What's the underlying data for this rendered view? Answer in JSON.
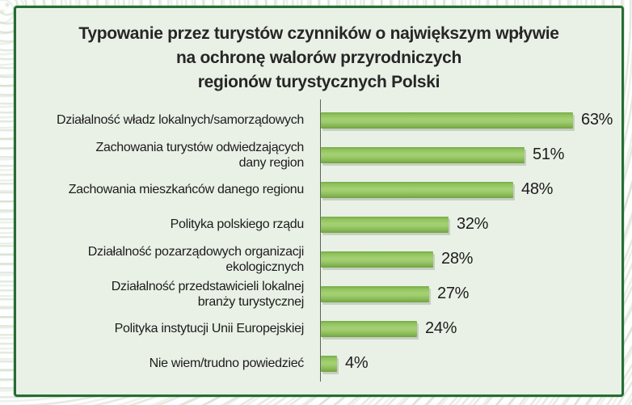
{
  "title_lines": [
    "Typowanie przez turystów czynników o największym wpływie",
    "na ochronę walorów przyrodniczych",
    "regionów turystycznych Polski"
  ],
  "colors": {
    "panel_background": "#e9f1e6",
    "panel_border": "#266d33",
    "bar_green": "#8fc35c",
    "axis": "#5c685a",
    "text": "#1c1c1c"
  },
  "chart_data": {
    "type": "bar",
    "orientation": "horizontal",
    "title": "Typowanie przez turystów czynników o największym wpływie na ochronę walorów przyrodniczych regionów turystycznych Polski",
    "unit": "%",
    "xlim": [
      0,
      70
    ],
    "grid": false,
    "legend": false,
    "categories": [
      "Działalność władz lokalnych/samorządowych",
      "Zachowania turystów odwiedzających dany region",
      "Zachowania mieszkańców danego regionu",
      "Polityka polskiego rządu",
      "Działalność pozarządowych organizacji ekologicznych",
      "Działalność przedstawicieli lokalnej branży turystycznej",
      "Polityka instytucji Unii Europejskiej",
      "Nie wiem/trudno powiedzieć"
    ],
    "category_lines": [
      [
        "Działalność władz lokalnych/samorządowych"
      ],
      [
        "Zachowania turystów odwiedzających",
        "dany region"
      ],
      [
        "Zachowania mieszkańców danego regionu"
      ],
      [
        "Polityka polskiego rządu"
      ],
      [
        "Działalność pozarządowych organizacji",
        "ekologicznych"
      ],
      [
        "Działalność przedstawicieli lokalnej",
        "branży turystycznej"
      ],
      [
        "Polityka instytucji Unii Europejskiej"
      ],
      [
        "Nie wiem/trudno powiedzieć"
      ]
    ],
    "values": [
      63,
      51,
      48,
      32,
      28,
      27,
      24,
      4
    ],
    "value_labels": [
      "63%",
      "51%",
      "48%",
      "32%",
      "28%",
      "27%",
      "24%",
      "4%"
    ]
  }
}
